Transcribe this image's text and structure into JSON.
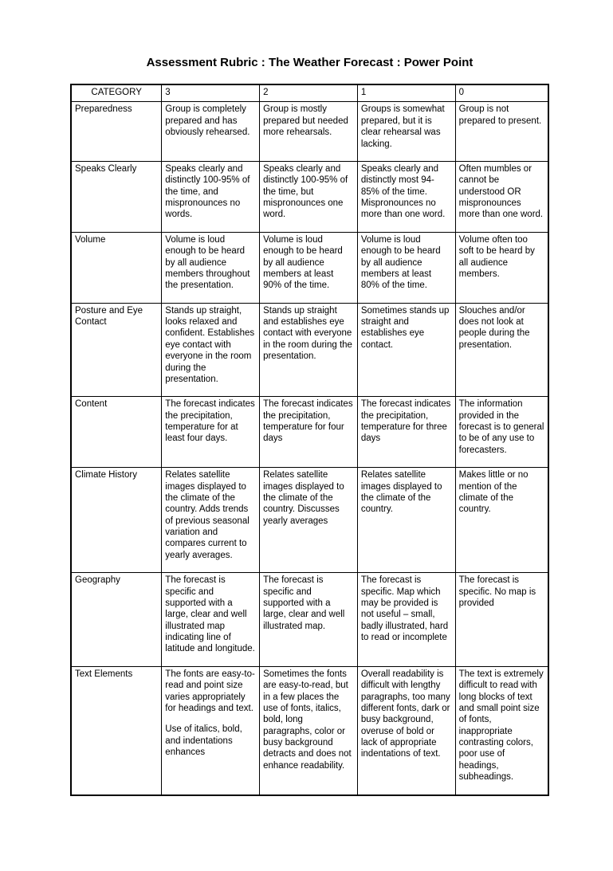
{
  "title": "Assessment Rubric :  The Weather Forecast :  Power Point",
  "headers": [
    "CATEGORY",
    "3",
    "2",
    "1",
    "0"
  ],
  "rows": [
    {
      "category": "Preparedness",
      "c3": "Group is completely prepared and has obviously rehearsed.",
      "c2": "Group is mostly prepared but needed more rehearsals.",
      "c1": "Groups is somewhat prepared, but it is clear rehearsal was lacking.",
      "c0": "Group is not prepared to present."
    },
    {
      "category": "Speaks Clearly",
      "c3": "Speaks clearly and distinctly 100-95% of the time, and mispronounces no words.",
      "c2": "Speaks clearly and distinctly 100-95% of the time, but mispronounces one word.",
      "c1": "Speaks clearly and distinctly most 94-85% of the time. Mispronounces no more than one word.",
      "c0": "Often mumbles or cannot be understood OR mispronounces more than one word."
    },
    {
      "category": "Volume",
      "c3": "Volume is loud enough to be heard by all audience members throughout the presentation.",
      "c2": "Volume is loud enough to be heard by all audience members at least 90% of the time.",
      "c1": "Volume is loud enough to be heard by all audience members at least 80% of the time.",
      "c0": "Volume often too soft to be heard by all audience members."
    },
    {
      "category": "Posture and Eye Contact",
      "c3": "Stands up straight, looks relaxed and confident. Establishes eye contact with everyone in the room during the presentation.",
      "c2": "Stands up straight and establishes eye contact with everyone in the room during the presentation.",
      "c1": "Sometimes stands up straight and establishes eye contact.",
      "c0": "Slouches and/or does not look at people during the presentation."
    },
    {
      "category": "Content",
      "c3": "The forecast indicates the precipitation, temperature for at least four days.",
      "c2": "The forecast indicates the precipitation, temperature for four days",
      "c1": "The forecast indicates the precipitation, temperature for three days",
      "c0": "The information provided in the forecast is to general to be of any use to forecasters."
    },
    {
      "category": "Climate History",
      "c3": "Relates satellite images displayed to the climate of the country.  Adds trends of previous seasonal variation and compares current to yearly averages.",
      "c2": "Relates satellite images displayed to the climate of the country.  Discusses yearly averages",
      "c1": "Relates satellite images displayed to the climate of the country.",
      "c0": "Makes little or no mention of the climate of the country."
    },
    {
      "category": "Geography",
      "c3": "The forecast is specific and supported with a large, clear and well illustrated map indicating line of latitude and longitude.",
      "c2": "The forecast is specific and supported with a large, clear and well illustrated map.",
      "c1": "The forecast is specific.  Map which may be provided is not useful – small, badly illustrated, hard to read or incomplete",
      "c0": "The forecast is specific.  No map is provided"
    },
    {
      "category": "Text Elements",
      "c3": "The fonts are easy-to-read and point size varies appropriately for headings and text.",
      "c3b": "Use of italics, bold, and indentations enhances",
      "c2": "Sometimes the fonts are easy-to-read, but in a few places the use of fonts, italics, bold, long paragraphs, color or busy background detracts and does not enhance readability.",
      "c1": "Overall readability is difficult with lengthy paragraphs, too many different fonts, dark or busy background, overuse of bold or lack of appropriate indentations of text.",
      "c0": "The text is extremely difficult to read with long blocks of text and small point size of fonts, inappropriate contrasting colors, poor use of headings, subheadings."
    }
  ]
}
